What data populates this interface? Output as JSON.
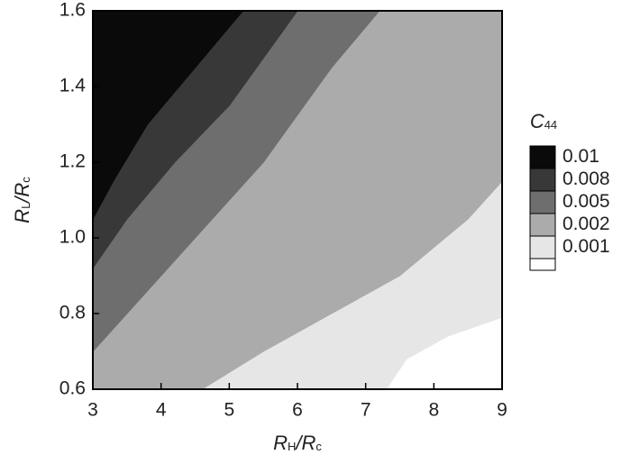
{
  "chart_data": {
    "type": "contour",
    "xlabel_parts": [
      "R",
      "H",
      "/R",
      "c"
    ],
    "ylabel_parts": [
      "R",
      "L",
      "/R",
      "c"
    ],
    "legend_title_parts": [
      "C",
      "44"
    ],
    "xlim": [
      3,
      9
    ],
    "ylim": [
      0.6,
      1.6
    ],
    "xticks": [
      3,
      4,
      5,
      6,
      7,
      8,
      9
    ],
    "yticks": [
      0.6,
      0.8,
      {
        "value": 1.0,
        "label": "1.0"
      },
      1.2,
      1.4,
      1.6
    ],
    "background": "#ffffff",
    "series": [
      {
        "name": "0.001",
        "level": 0.001,
        "color": "#e6e6e6",
        "x": [
          7.3,
          7.6,
          8.2,
          9.0
        ],
        "y": [
          0.6,
          0.68,
          0.74,
          0.79
        ]
      },
      {
        "name": "0.002",
        "level": 0.002,
        "color": "#ababab",
        "x": [
          4.6,
          5.5,
          6.5,
          7.5,
          8.5,
          9.0
        ],
        "y": [
          0.6,
          0.7,
          0.8,
          0.9,
          1.05,
          1.15
        ]
      },
      {
        "name": "0.005",
        "level": 0.005,
        "color": "#6e6e6e",
        "x": [
          3.0,
          3.5,
          4.5,
          5.5,
          6.5,
          7.2
        ],
        "y": [
          0.7,
          0.8,
          1.0,
          1.2,
          1.45,
          1.6
        ]
      },
      {
        "name": "0.008",
        "level": 0.008,
        "color": "#383838",
        "x": [
          3.0,
          3.5,
          4.2,
          5.0,
          6.0
        ],
        "y": [
          0.92,
          1.05,
          1.2,
          1.35,
          1.6
        ]
      },
      {
        "name": "0.01",
        "level": 0.01,
        "color": "#0a0a0a",
        "x": [
          3.0,
          3.3,
          3.8,
          4.5,
          5.2
        ],
        "y": [
          1.05,
          1.15,
          1.3,
          1.45,
          1.6
        ]
      }
    ]
  }
}
